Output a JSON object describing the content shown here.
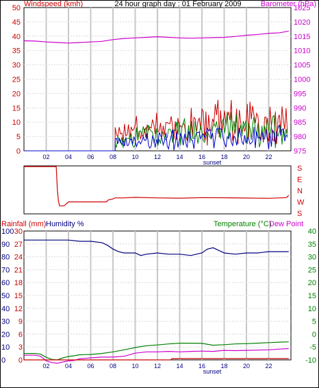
{
  "chart_data": [
    {
      "type": "line",
      "title": "24 hour graph day : 01 February 2009",
      "left_axis_label": "Windspeed (kmh)",
      "right_axis_label": "Barometer (hPa)",
      "left_ticks": [
        "50",
        "45",
        "40",
        "35",
        "30",
        "25",
        "20",
        "15",
        "10",
        "5",
        "0"
      ],
      "right_ticks": [
        "1025",
        "1020",
        "1015",
        "1010",
        "1005",
        "1000",
        "995",
        "990",
        "985",
        "980",
        "975"
      ],
      "x_ticks": [
        "02",
        "04",
        "06",
        "08",
        "10",
        "12",
        "14",
        "16",
        "18",
        "20",
        "22"
      ],
      "annotation": "sunset",
      "ylim_left": [
        0,
        50
      ],
      "ylim_right": [
        975,
        1025
      ],
      "xlim": [
        0,
        24
      ],
      "colors": {
        "windspeed": "#cc0000",
        "gust": "#008000",
        "avg": "#0000cc",
        "barometer": "#cc00cc",
        "grid": "#c8c8c8"
      },
      "series": [
        {
          "name": "Barometer (hPa)",
          "axis": "right",
          "x": [
            0,
            1,
            2,
            3,
            4,
            5,
            6,
            7,
            8,
            9,
            10,
            11,
            12,
            13,
            14,
            15,
            16,
            17,
            18,
            19,
            20,
            21,
            22,
            23,
            23.8
          ],
          "values": [
            1013.4,
            1013.3,
            1013.0,
            1012.8,
            1012.6,
            1012.8,
            1013.0,
            1013.2,
            1013.8,
            1014.2,
            1014.4,
            1014.6,
            1014.8,
            1014.6,
            1014.4,
            1014.3,
            1014.4,
            1014.5,
            1014.6,
            1014.9,
            1015.3,
            1015.6,
            1016.0,
            1016.2,
            1016.8
          ]
        }
      ]
    },
    {
      "type": "line",
      "right_ticks": [
        "S",
        "E",
        "N",
        "W",
        "S"
      ],
      "ylim": [
        0,
        360
      ],
      "xlim": [
        0,
        24
      ],
      "series": [
        {
          "x": [
            0,
            1.5,
            2.9,
            3.0,
            3.1,
            3.2,
            3.6,
            4,
            6,
            7.4,
            7.6,
            8,
            8.2,
            9,
            10,
            12,
            14,
            16,
            18,
            20,
            22,
            23,
            23.6,
            23.8
          ],
          "values": [
            355,
            355,
            355,
            180,
            95,
            60,
            60,
            90,
            90,
            90,
            105,
            112,
            120,
            120,
            124,
            120,
            118,
            122,
            121,
            119,
            117,
            120,
            122,
            140
          ]
        }
      ]
    },
    {
      "type": "line",
      "rainfall_label": "Rainfall (mm)",
      "humidity_label": "Humidity %",
      "temperature_label": "Temperature (°C)",
      "dewpoint_label": "Dew Point",
      "left_ticks_humidity": [
        "100",
        "90",
        "80",
        "70",
        "60",
        "50",
        "40",
        "30",
        "20",
        "10",
        "0"
      ],
      "left_ticks_rain": [
        "30",
        "27",
        "24",
        "21",
        "18",
        "15",
        "12",
        "9",
        "6",
        "3",
        "0"
      ],
      "right_ticks_temp": [
        "40",
        "35",
        "30",
        "25",
        "20",
        "15",
        "10",
        "5",
        "0",
        "-5",
        "-10"
      ],
      "x_ticks": [
        "02",
        "04",
        "06",
        "08",
        "10",
        "12",
        "14",
        "16",
        "18",
        "20",
        "22"
      ],
      "annotation": "sunset",
      "ylim_humidity": [
        0,
        100
      ],
      "ylim_temp": [
        -10,
        40
      ],
      "xlim": [
        0,
        24
      ],
      "colors": {
        "humidity": "#000080",
        "temperature": "#008000",
        "dewpoint": "#cc00cc",
        "rainfall": "#cc0000"
      },
      "series": [
        {
          "name": "Humidity %",
          "x": [
            0,
            1,
            2,
            3,
            4,
            5,
            6,
            7,
            7.5,
            8,
            8.5,
            9,
            10,
            10.5,
            11,
            12,
            13,
            14,
            15,
            16,
            16.5,
            17,
            17.5,
            18,
            19,
            20,
            21,
            22,
            23,
            23.8
          ],
          "values": [
            93,
            93,
            93,
            93,
            93,
            92,
            92,
            91,
            89,
            86,
            84,
            83,
            83,
            81,
            82,
            83,
            82,
            82,
            81,
            83,
            86,
            87,
            85,
            83,
            82,
            83,
            83,
            84,
            84,
            84
          ]
        },
        {
          "name": "Temperature (°C)",
          "x": [
            0,
            1,
            1.5,
            2,
            2.5,
            3,
            3.5,
            4,
            4.5,
            5,
            6,
            7,
            8,
            9,
            10,
            11,
            12,
            13,
            14,
            15,
            16,
            17,
            18,
            19,
            20,
            21,
            22,
            23,
            23.8
          ],
          "values": [
            -7.5,
            -7.5,
            -7.8,
            -9.0,
            -9.8,
            -10.0,
            -9.2,
            -8.7,
            -8.4,
            -8.0,
            -7.9,
            -7.5,
            -6.9,
            -6.1,
            -5.2,
            -4.5,
            -4.2,
            -3.8,
            -3.5,
            -3.5,
            -3.6,
            -4.3,
            -4.1,
            -3.8,
            -3.7,
            -3.5,
            -3.3,
            -3.1,
            -3.0
          ]
        },
        {
          "name": "Dew Point",
          "x": [
            0,
            1,
            1.5,
            2,
            2.5,
            3,
            3.5,
            4,
            4.5,
            5,
            6,
            7,
            8,
            9,
            10,
            11,
            12,
            13,
            14,
            15,
            16,
            17,
            18,
            19,
            20,
            21,
            22,
            23,
            23.8
          ],
          "values": [
            -8.2,
            -8.2,
            -8.6,
            -10.4,
            -11.0,
            -11.3,
            -10.8,
            -10.4,
            -10.2,
            -9.6,
            -9.2,
            -8.9,
            -8.9,
            -8.6,
            -7.4,
            -6.9,
            -6.9,
            -6.7,
            -6.9,
            -6.7,
            -6.6,
            -6.7,
            -6.3,
            -6.4,
            -6.3,
            -6.2,
            -6.1,
            -5.8,
            -5.6
          ]
        },
        {
          "name": "Rainfall (mm)",
          "x": [
            0,
            13.2,
            13.3,
            23.8
          ],
          "values": [
            0,
            0,
            0.3,
            0.3
          ]
        }
      ]
    }
  ]
}
